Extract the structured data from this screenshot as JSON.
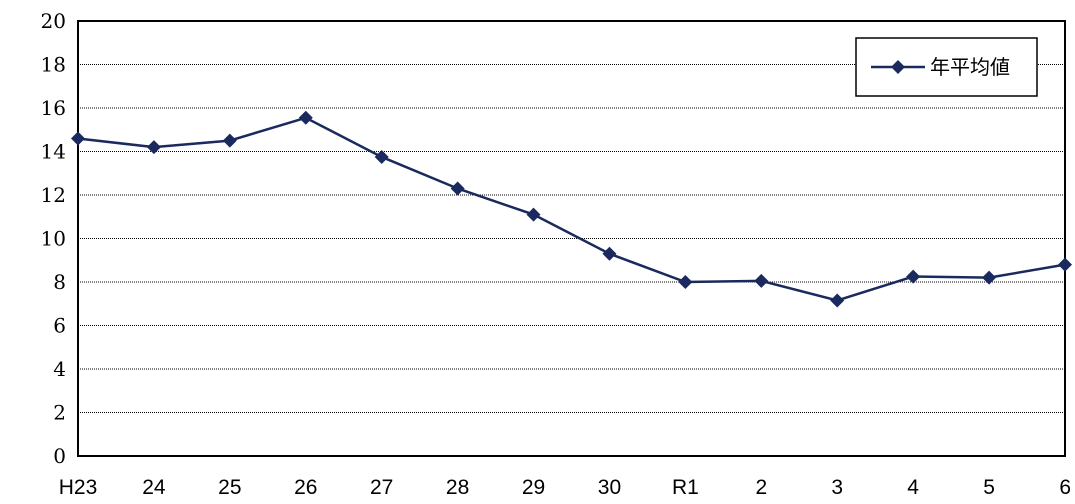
{
  "chart_data": {
    "type": "line",
    "categories": [
      "H23",
      "24",
      "25",
      "26",
      "27",
      "28",
      "29",
      "30",
      "R1",
      "2",
      "3",
      "4",
      "5",
      "6"
    ],
    "series": [
      {
        "name": "年平均値",
        "values": [
          14.6,
          14.2,
          14.5,
          15.55,
          13.75,
          12.3,
          11.1,
          9.3,
          8.0,
          8.05,
          7.15,
          8.25,
          8.2,
          8.8
        ],
        "color": "#1a2a5e",
        "marker": "diamond"
      }
    ],
    "ylim": [
      0,
      20
    ],
    "yticks": [
      "0",
      "2",
      "4",
      "6",
      "8",
      "10",
      "12",
      "14",
      "16",
      "18",
      "20"
    ],
    "grid": "horizontal-dotted",
    "legend_position": "top-right",
    "title": "",
    "xlabel": "",
    "ylabel": ""
  }
}
